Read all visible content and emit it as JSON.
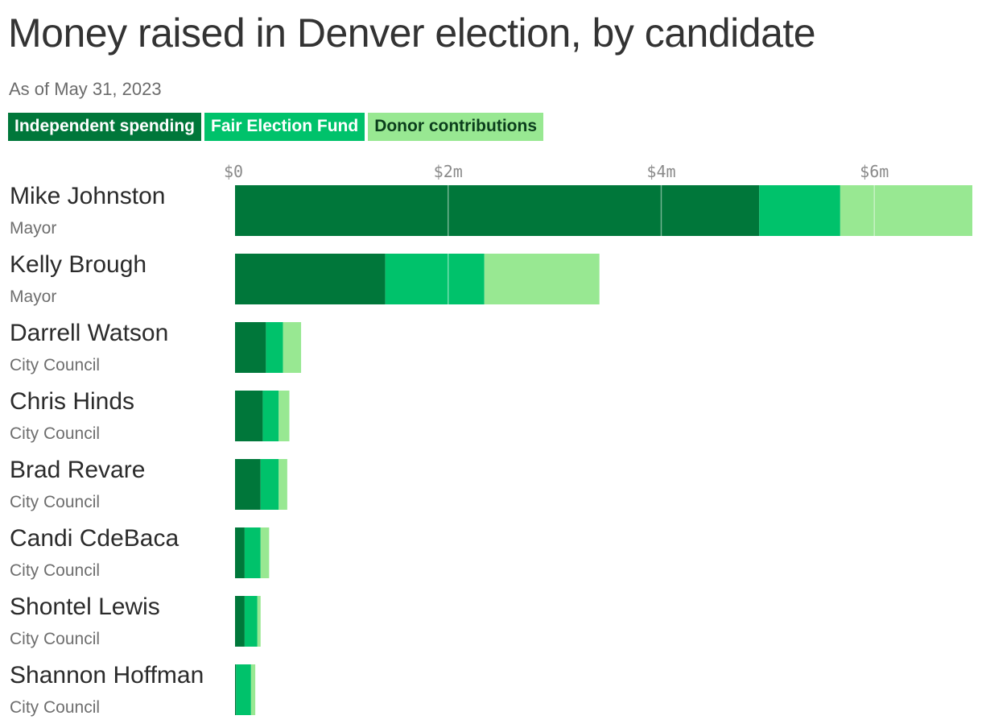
{
  "title": "Money raised in Denver election, by candidate",
  "subtitle": "As of May 31, 2023",
  "legend": [
    {
      "label": "Independent spending",
      "bg": "#00773a",
      "fg": "#ffffff"
    },
    {
      "label": "Fair Election Fund",
      "bg": "#00c26b",
      "fg": "#ffffff"
    },
    {
      "label": "Donor contributions",
      "bg": "#98e892",
      "fg": "#0b3d1c"
    }
  ],
  "chart_data": {
    "type": "bar",
    "orientation": "horizontal",
    "stacked": true,
    "title": "Money raised in Denver election, by candidate",
    "subtitle": "As of May 31, 2023",
    "categories": [
      "Mike Johnston",
      "Kelly Brough",
      "Darrell Watson",
      "Chris Hinds",
      "Brad Revare",
      "Candi CdeBaca",
      "Shontel Lewis",
      "Shannon Hoffman"
    ],
    "category_roles": [
      "Mayor",
      "Mayor",
      "City Council",
      "City Council",
      "City Council",
      "City Council",
      "City Council",
      "City Council"
    ],
    "series": [
      {
        "name": "Independent spending",
        "color": "#00773a",
        "values": [
          4.92,
          1.41,
          0.29,
          0.26,
          0.24,
          0.09,
          0.09,
          0.01
        ]
      },
      {
        "name": "Fair Election Fund",
        "color": "#00c26b",
        "values": [
          0.76,
          0.93,
          0.16,
          0.15,
          0.17,
          0.15,
          0.12,
          0.14
        ]
      },
      {
        "name": "Donor contributions",
        "color": "#98e892",
        "values": [
          1.24,
          1.08,
          0.17,
          0.1,
          0.08,
          0.08,
          0.03,
          0.04
        ]
      }
    ],
    "x_ticks": [
      {
        "value": 0,
        "label": "$0"
      },
      {
        "value": 2,
        "label": "$2m"
      },
      {
        "value": 4,
        "label": "$4m"
      },
      {
        "value": 6,
        "label": "$6m"
      }
    ],
    "xlim": [
      0,
      6.92
    ],
    "units": "millions of dollars",
    "grid": true,
    "legend_position": "top-left"
  }
}
